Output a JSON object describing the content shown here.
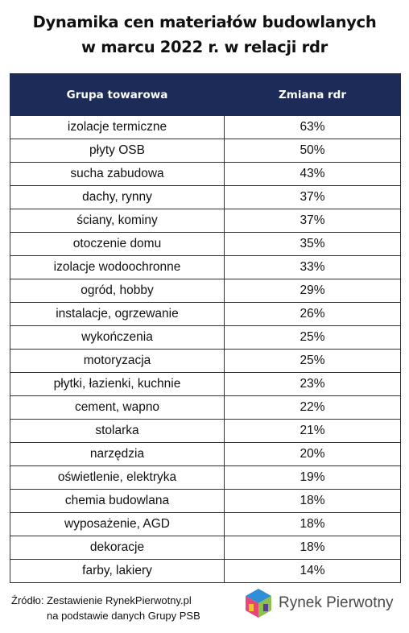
{
  "title": {
    "line1": "Dynamika cen materiałów budowlanych",
    "line2": "w marcu 2022 r. w relacji rdr"
  },
  "table": {
    "headers": [
      "Grupa towarowa",
      "Zmiana rdr"
    ],
    "rows": [
      [
        "izolacje termiczne",
        "63%"
      ],
      [
        "płyty OSB",
        "50%"
      ],
      [
        "sucha zabudowa",
        "43%"
      ],
      [
        "dachy, rynny",
        "37%"
      ],
      [
        "ściany, kominy",
        "37%"
      ],
      [
        "otoczenie domu",
        "35%"
      ],
      [
        "izolacje wodoochronne",
        "33%"
      ],
      [
        "ogród, hobby",
        "29%"
      ],
      [
        "instalacje, ogrzewanie",
        "26%"
      ],
      [
        "wykończenia",
        "25%"
      ],
      [
        "motoryzacja",
        "25%"
      ],
      [
        "płytki, łazienki, kuchnie",
        "23%"
      ],
      [
        "cement, wapno",
        "22%"
      ],
      [
        "stolarka",
        "21%"
      ],
      [
        "narzędzia",
        "20%"
      ],
      [
        "oświetlenie, elektryka",
        "19%"
      ],
      [
        "chemia budowlana",
        "18%"
      ],
      [
        "wyposażenie, AGD",
        "18%"
      ],
      [
        "dekoracje",
        "18%"
      ],
      [
        "farby, lakiery",
        "14%"
      ]
    ]
  },
  "source": {
    "line1": "Źródło: Zestawienie RynekPierwotny.pl",
    "line2": "na podstawie danych Grupy PSB"
  },
  "logo": {
    "icon": "rynek-pierwotny-logo-icon",
    "text": "Rynek Pierwotny",
    "colors": [
      "#2f8fd6",
      "#e8457a",
      "#8bc34a",
      "#f2c12e",
      "#5c3d8f"
    ]
  }
}
